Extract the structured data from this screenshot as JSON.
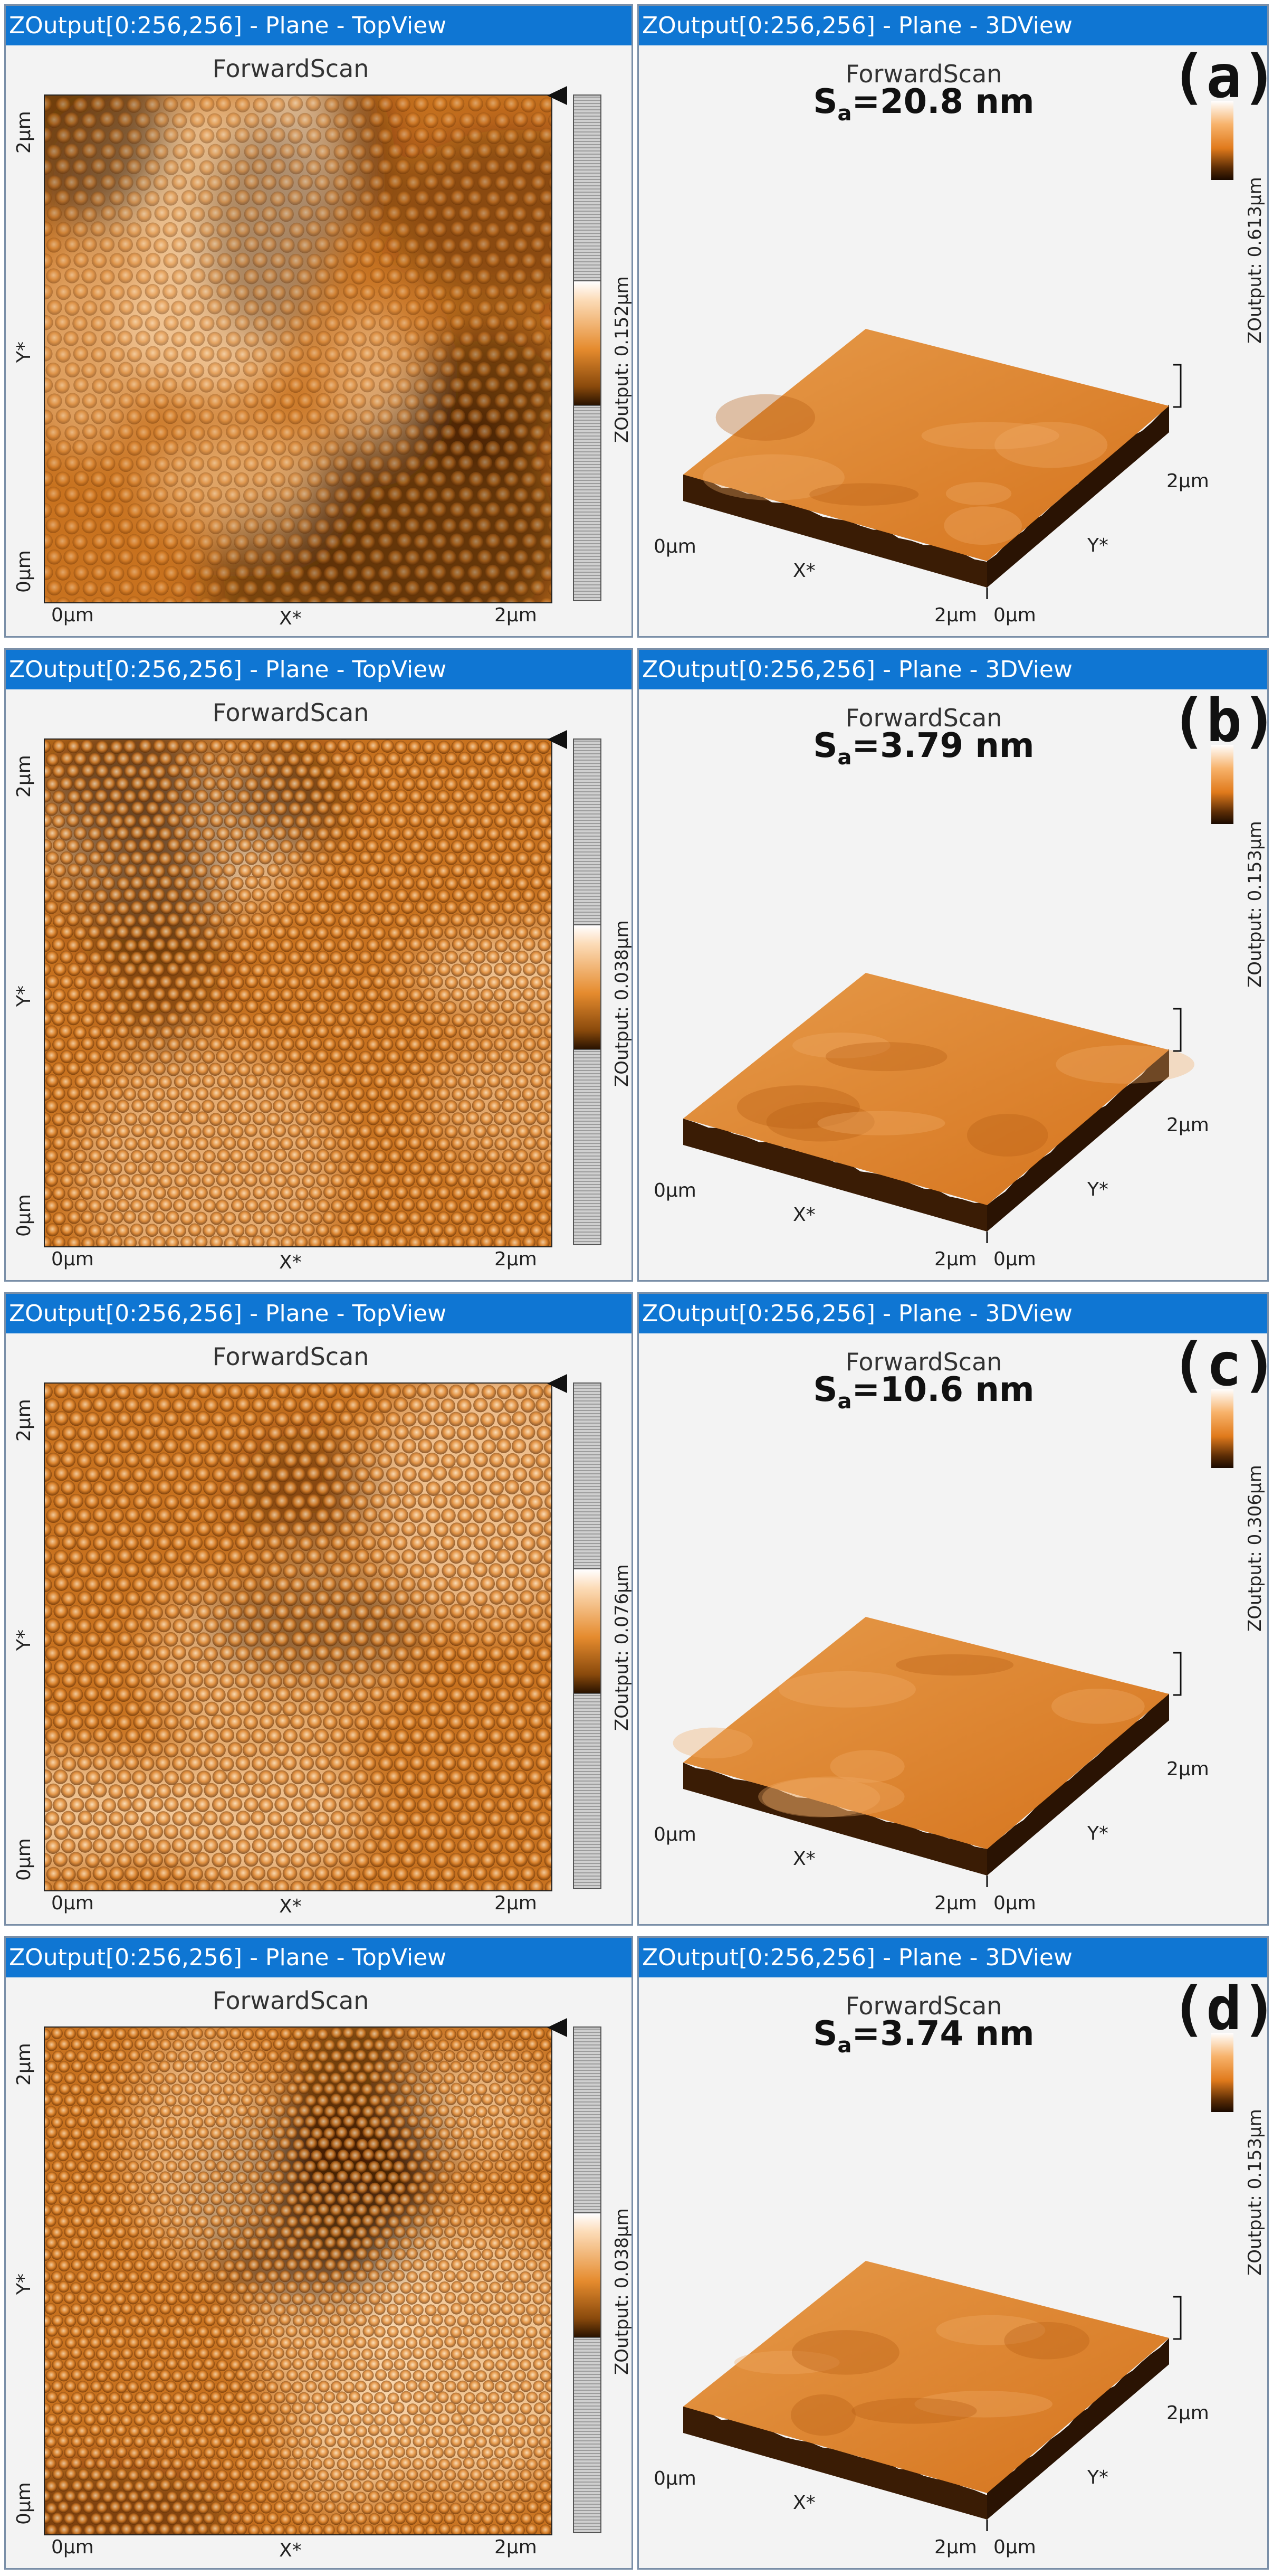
{
  "panels": [
    {
      "topview_title": "ZOutput[0:256,256] - Plane - TopView",
      "view3d_title": "ZOutput[0:256,256] - Plane - 3DView",
      "scan_title": "ForwardScan",
      "scan_title_3d": "ForwardScan",
      "sa_prefix": "S",
      "sa_sub": "a",
      "sa_value": "=20.8 nm",
      "letter": "(a)",
      "colorbar_label": "ZOutput: 0.152µm",
      "colorbar_label_3d": "ZOutput: 0.613µm",
      "y_axis_top": "2µm",
      "y_axis_mid": "Y*",
      "y_axis_bottom": "0µm",
      "x_axis_left": "0µm",
      "x_axis_mid": "X*",
      "x_axis_right": "2µm",
      "iso_x0": "0µm",
      "iso_x_mid": "X*",
      "iso_x1": "2µm",
      "iso_y0": "0µm",
      "iso_y_mid": "Y*",
      "iso_y1": "2µm",
      "texture": "rough"
    },
    {
      "topview_title": "ZOutput[0:256,256] - Plane - TopView",
      "view3d_title": "ZOutput[0:256,256] - Plane - 3DView",
      "scan_title": "ForwardScan",
      "scan_title_3d": "ForwardScan",
      "sa_prefix": "S",
      "sa_sub": "a",
      "sa_value": "=3.79 nm",
      "letter": "(b)",
      "colorbar_label": "ZOutput: 0.038µm",
      "colorbar_label_3d": "ZOutput: 0.153µm",
      "y_axis_top": "2µm",
      "y_axis_mid": "Y*",
      "y_axis_bottom": "0µm",
      "x_axis_left": "0µm",
      "x_axis_mid": "X*",
      "x_axis_right": "2µm",
      "iso_x0": "0µm",
      "iso_x_mid": "X*",
      "iso_x1": "2µm",
      "iso_y0": "0µm",
      "iso_y_mid": "Y*",
      "iso_y1": "2µm",
      "texture": "dots"
    },
    {
      "topview_title": "ZOutput[0:256,256] - Plane - TopView",
      "view3d_title": "ZOutput[0:256,256] - Plane - 3DView",
      "scan_title": "ForwardScan",
      "scan_title_3d": "ForwardScan",
      "sa_prefix": "S",
      "sa_sub": "a",
      "sa_value": "=10.6 nm",
      "letter": "(c)",
      "colorbar_label": "ZOutput: 0.076µm",
      "colorbar_label_3d": "ZOutput: 0.306µm",
      "y_axis_top": "2µm",
      "y_axis_mid": "Y*",
      "y_axis_bottom": "0µm",
      "x_axis_left": "0µm",
      "x_axis_mid": "X*",
      "x_axis_right": "2µm",
      "iso_x0": "0µm",
      "iso_x_mid": "X*",
      "iso_x1": "2µm",
      "iso_y0": "0µm",
      "iso_y_mid": "Y*",
      "iso_y1": "2µm",
      "texture": "hex"
    },
    {
      "topview_title": "ZOutput[0:256,256] - Plane - TopView",
      "view3d_title": "ZOutput[0:256,256] - Plane - 3DView",
      "scan_title": "ForwardScan",
      "scan_title_3d": "ForwardScan",
      "sa_prefix": "S",
      "sa_sub": "a",
      "sa_value": "=3.74 nm",
      "letter": "(d)",
      "colorbar_label": "ZOutput: 0.038µm",
      "colorbar_label_3d": "ZOutput: 0.153µm",
      "y_axis_top": "2µm",
      "y_axis_mid": "Y*",
      "y_axis_bottom": "0µm",
      "x_axis_left": "0µm",
      "x_axis_mid": "X*",
      "x_axis_right": "2µm",
      "iso_x0": "0µm",
      "iso_x_mid": "X*",
      "iso_x1": "2µm",
      "iso_y0": "0µm",
      "iso_y_mid": "Y*",
      "iso_y1": "2µm",
      "texture": "fine"
    }
  ],
  "colors": {
    "titlebar": "#0f76d3",
    "afm_mid": "#c8721f",
    "afm_dark": "#3a1a02",
    "afm_light": "#ffe3c0"
  }
}
